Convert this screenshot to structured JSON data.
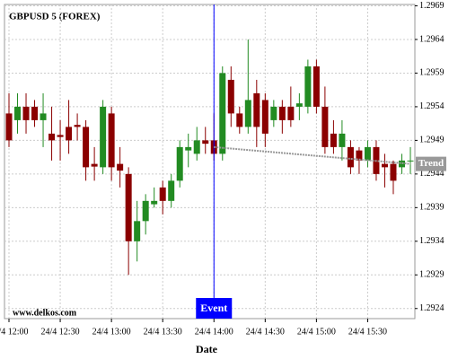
{
  "chart_data": {
    "type": "candlestick",
    "title": "GBPUSD 5 (FOREX)",
    "x_label": "Date",
    "watermark": "www.delkos.com",
    "categories": [
      "24/4 12:00",
      null,
      null,
      null,
      null,
      null,
      "24/4 12:30",
      null,
      null,
      null,
      null,
      null,
      "24/4 13:00",
      null,
      null,
      null,
      null,
      null,
      "24/4 13:30",
      null,
      null,
      null,
      null,
      null,
      "24/4 14:00",
      null,
      null,
      null,
      null,
      null,
      "24/4 14:30",
      null,
      null,
      null,
      null,
      null,
      "24/4 15:00",
      null,
      null,
      null,
      null,
      null,
      "24/4 15:30",
      null,
      null,
      null,
      null,
      null
    ],
    "open": [
      1.2953,
      1.2952,
      1.2954,
      1.2954,
      1.2952,
      1.295,
      1.29498,
      1.2951,
      1.29513,
      1.2951,
      1.29455,
      1.2945,
      1.2953,
      1.29455,
      1.2944,
      1.2934,
      1.2937,
      1.29395,
      1.2942,
      1.294,
      1.2943,
      1.29475,
      1.2947,
      1.2949,
      1.2949,
      1.2947,
      1.2958,
      1.2953,
      1.2951,
      1.2956,
      1.2955,
      1.2952,
      1.2954,
      1.2954,
      1.2954,
      1.2954,
      1.296,
      1.2954,
      1.295,
      1.2948,
      1.2948,
      1.29475,
      1.2946,
      1.2948,
      1.29455,
      1.29455,
      1.2945,
      1.2946
    ],
    "high": [
      1.2956,
      1.2956,
      1.2956,
      1.2955,
      1.2956,
      1.2954,
      1.2952,
      1.2955,
      1.2953,
      1.2952,
      1.2948,
      1.2955,
      1.2954,
      1.2948,
      1.2945,
      1.294,
      1.2941,
      1.2942,
      1.2943,
      1.2944,
      1.2949,
      1.295,
      1.2951,
      1.2951,
      1.2953,
      1.296,
      1.296,
      1.2954,
      1.2964,
      1.2958,
      1.2956,
      1.2955,
      1.2955,
      1.2957,
      1.2956,
      1.2961,
      1.2961,
      1.2957,
      1.2952,
      1.2952,
      1.2949,
      1.2948,
      1.2949,
      1.2949,
      1.2947,
      1.2946,
      1.2947,
      1.2948
    ],
    "low": [
      1.2948,
      1.295,
      1.295,
      1.2951,
      1.2948,
      1.2946,
      1.2946,
      1.2947,
      1.2949,
      1.2943,
      1.2943,
      1.2944,
      1.2943,
      1.2942,
      1.2929,
      1.2931,
      1.2935,
      1.2939,
      1.2938,
      1.2939,
      1.2942,
      1.2945,
      1.2946,
      1.2947,
      1.2946,
      1.2946,
      1.2951,
      1.295,
      1.295,
      1.2948,
      1.2948,
      1.2951,
      1.295,
      1.2951,
      1.2952,
      1.2953,
      1.2953,
      1.2947,
      1.2947,
      1.2946,
      1.2944,
      1.2944,
      1.2945,
      1.2943,
      1.2942,
      1.2941,
      1.2944,
      1.2944
    ],
    "close": [
      1.2949,
      1.2954,
      1.2952,
      1.2952,
      1.2953,
      1.2949,
      1.29495,
      1.2949,
      1.2951,
      1.2945,
      1.29451,
      1.2954,
      1.2945,
      1.29445,
      1.2934,
      1.2937,
      1.294,
      1.294,
      1.294,
      1.2943,
      1.2948,
      1.2948,
      1.2949,
      1.29485,
      1.2947,
      1.2959,
      1.2953,
      1.2951,
      1.2955,
      1.2951,
      1.295,
      1.2954,
      1.2952,
      1.2952,
      1.29545,
      1.296,
      1.2954,
      1.2948,
      1.2948,
      1.295,
      1.2945,
      1.2946,
      1.2948,
      1.2944,
      1.2945,
      1.2943,
      1.2946,
      1.2946
    ],
    "up_color": "#228b22",
    "down_color": "#8b0000",
    "ylim": [
      1.29225,
      1.29692
    ],
    "yticks": [
      1.2924,
      1.2929,
      1.2934,
      1.2939,
      1.2944,
      1.2949,
      1.2954,
      1.2959,
      1.2964,
      1.2969
    ],
    "grid": true,
    "event": {
      "label": "Event",
      "x": "24/4 14:00",
      "color": "#0000ff"
    },
    "trend": {
      "label": "Trend",
      "from_index": 24,
      "to_index": 47,
      "from": 1.2948,
      "to": 1.29455,
      "color": "#999999"
    }
  }
}
